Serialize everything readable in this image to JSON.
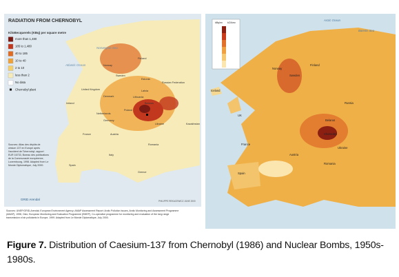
{
  "left_map": {
    "title": "RADIATION FROM CHERNOBYL",
    "legend_title": "KiloBecquerels (KBq) per square metre",
    "legend": [
      {
        "label": "more than 1,480",
        "color": "#7b1a12"
      },
      {
        "label": "185 to 1,480",
        "color": "#c2381f"
      },
      {
        "label": "40 to 185",
        "color": "#e06b22"
      },
      {
        "label": "10 to 40",
        "color": "#efa23a"
      },
      {
        "label": "2 to 10",
        "color": "#f5cf6c"
      },
      {
        "label": "less than 2",
        "color": "#f6ebb9"
      },
      {
        "label": "No data",
        "color": "#ffffff"
      },
      {
        "label": "Chernobyl plant",
        "color": "#000000"
      }
    ],
    "labels": [
      "Norwegian Sea",
      "Atlantic Ocean",
      "Norway",
      "Sweden",
      "Finland",
      "Russian Federation",
      "United Kingdom",
      "Ireland",
      "Denmark",
      "Estonia",
      "Latvia",
      "Lithuania",
      "Netherlands",
      "Germany",
      "Poland",
      "Belarus",
      "France",
      "Ukraine",
      "Austria",
      "Romania",
      "Italy",
      "Spain",
      "Kazakhstan",
      "Greece"
    ],
    "note": "Sources: Atlas des dépôts de césium 137 en Europe après l'accident de Tchernobyl, rapport EUR 16733, Bureau des publications de la Communauté européenne, Luxembourg, 1998. Adapted from Le Monde Diplomatique, July 2000.",
    "credit": "PHILIPPE REKACEWICZ JUNE 2000",
    "logo": "GRID Arendal",
    "source": "Sources: UNEP/GRID-Arendal; European Environment Agency; AMAP Assessment Report: Arctic Pollution Issues, Arctic Monitoring and Assessment Programme (AMAP), 1998, Oslo; European Monitoring and Evaluation Programme (EMEP), Co-operative programme for monitoring and evaluation of the long range transmission of air pollutants in Europe, 1999. Adapted from Le Monde Diplomatique, July 2000."
  },
  "right_map": {
    "legend_headers": [
      "kBq/m²",
      "kCi/km²"
    ],
    "legend_colors": [
      "#8a1f12",
      "#c83c1c",
      "#e0702a",
      "#efa040",
      "#f6c870",
      "#fbe6b0"
    ],
    "labels": [
      "Arctic Ocean",
      "Barents Sea",
      "Iceland",
      "Norway",
      "Sweden",
      "Finland",
      "UK",
      "Russia",
      "France",
      "Belarus",
      "Chernobyl",
      "Ukraine",
      "Austria",
      "Romania",
      "Spain"
    ]
  },
  "caption": {
    "label": "Figure 7.",
    "text": "Distribution of Caesium-137 from Chernobyl (1986) and Nuclear Bombs, 1950s-1980s."
  }
}
